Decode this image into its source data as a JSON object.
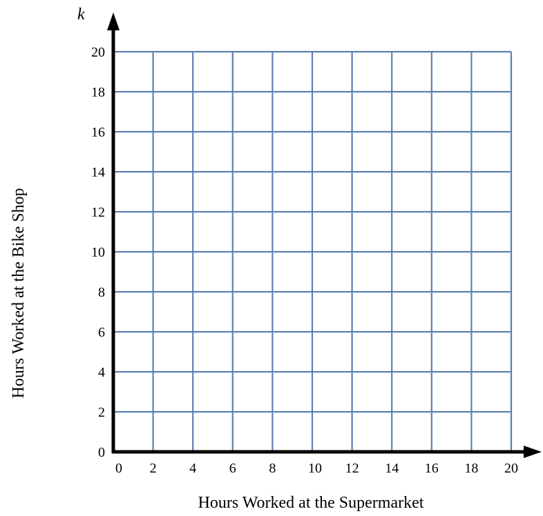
{
  "chart_data": {
    "type": "line",
    "title": "",
    "xlabel": "Hours Worked at the Supermarket",
    "ylabel": "Hours Worked at the Bike Shop",
    "y_variable": "k",
    "xlim": [
      0,
      20
    ],
    "ylim": [
      0,
      20
    ],
    "x_ticks": [
      0,
      2,
      4,
      6,
      8,
      10,
      12,
      14,
      16,
      18,
      20
    ],
    "y_ticks": [
      0,
      2,
      4,
      6,
      8,
      10,
      12,
      14,
      16,
      18,
      20
    ],
    "grid": true,
    "series": []
  },
  "colors": {
    "grid": "#5b80b2",
    "axis": "#000000"
  }
}
